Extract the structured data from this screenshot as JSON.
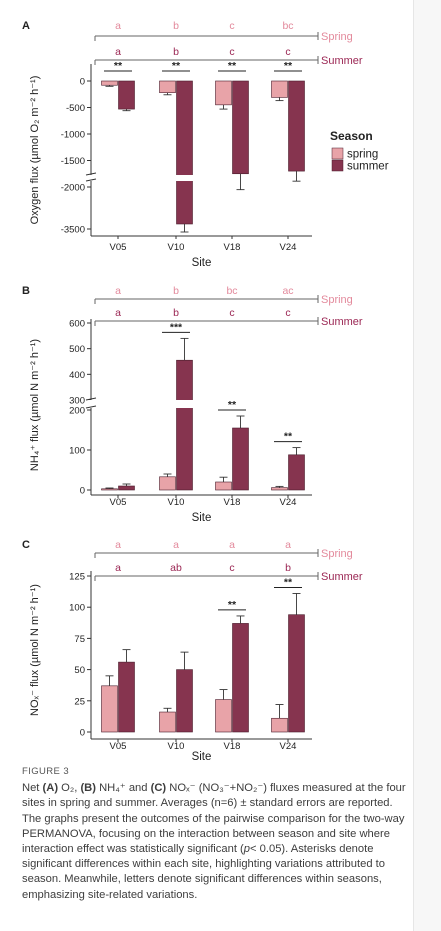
{
  "chart_data": [
    {
      "type": "bar",
      "panel_label": "A",
      "xlabel": "Site",
      "ylabel": "Oxygen flux (µmol O₂ m⁻² h⁻¹)",
      "y_axis_break": [
        -2500,
        -3200
      ],
      "ylim": [
        -3600,
        100
      ],
      "yticks": [
        0,
        -500,
        -1000,
        -1500,
        -2000,
        -3500
      ],
      "categories": [
        "V05",
        "V10",
        "V18",
        "V24"
      ],
      "series": [
        {
          "name": "spring",
          "values": [
            -80,
            -220,
            -450,
            -310
          ],
          "errors": [
            20,
            40,
            80,
            60
          ]
        },
        {
          "name": "summer",
          "values": [
            -530,
            -3400,
            -1750,
            -1700
          ],
          "errors": [
            30,
            160,
            300,
            190
          ]
        }
      ],
      "significance": [
        "**",
        "**",
        "**",
        "**"
      ],
      "spring_letters": [
        "a",
        "b",
        "c",
        "bc"
      ],
      "summer_letters": [
        "a",
        "b",
        "c",
        "c"
      ],
      "legend": {
        "title": "Season",
        "entries": [
          "spring",
          "summer"
        ],
        "position": "right"
      }
    },
    {
      "type": "bar",
      "panel_label": "B",
      "xlabel": "Site",
      "ylabel": "NH₄⁺ flux (µmol N m⁻² h⁻¹)",
      "y_axis_break": [
        220,
        320
      ],
      "ylim": [
        0,
        610
      ],
      "yticks": [
        0,
        100,
        200,
        300,
        400,
        500,
        600
      ],
      "categories": [
        "V05",
        "V10",
        "V18",
        "V24"
      ],
      "series": [
        {
          "name": "spring",
          "values": [
            3,
            33,
            20,
            6
          ],
          "errors": [
            2,
            7,
            12,
            3
          ]
        },
        {
          "name": "summer",
          "values": [
            10,
            455,
            155,
            88
          ],
          "errors": [
            5,
            85,
            30,
            18
          ]
        }
      ],
      "significance": [
        "",
        "***",
        "**",
        "**"
      ],
      "spring_letters": [
        "a",
        "b",
        "bc",
        "ac"
      ],
      "summer_letters": [
        "a",
        "b",
        "c",
        "c"
      ]
    },
    {
      "type": "bar",
      "panel_label": "C",
      "xlabel": "Site",
      "ylabel": "NOₓ⁻ flux (µmol N m⁻² h⁻¹)",
      "ylim": [
        0,
        125
      ],
      "yticks": [
        0,
        25,
        50,
        75,
        100,
        125
      ],
      "categories": [
        "V05",
        "V10",
        "V18",
        "V24"
      ],
      "series": [
        {
          "name": "spring",
          "values": [
            37,
            16,
            26,
            11
          ],
          "errors": [
            8,
            3,
            8,
            11
          ]
        },
        {
          "name": "summer",
          "values": [
            56,
            50,
            87,
            94
          ],
          "errors": [
            10,
            14,
            6,
            17
          ]
        }
      ],
      "significance": [
        "",
        "",
        "**",
        "**"
      ],
      "spring_letters": [
        "a",
        "a",
        "a",
        "a"
      ],
      "summer_letters": [
        "a",
        "ab",
        "c",
        "b"
      ]
    }
  ],
  "season_labels": {
    "spring": "Spring",
    "summer": "Summer"
  },
  "colors": {
    "spring": "#e8a3a8",
    "summer": "#86344f",
    "spring_text": "#e38a9c",
    "summer_text": "#9b2754",
    "axis": "#333333"
  },
  "caption": {
    "label": "FIGURE 3",
    "t1": "Net ",
    "a": "(A)",
    "t2": " O₂, ",
    "b": "(B)",
    "t3": " NH₄⁺ and ",
    "c": "(C)",
    "t4": " NOₓ⁻ (NO₃⁻+NO₂⁻) fluxes measured at the four sites in spring and summer. Averages (n=6) ± standard errors are reported. The graphs present the outcomes of the pairwise comparison for the two-way PERMANOVA, focusing on the interaction between season and site where interaction effect was statistically significant (",
    "p": "p",
    "t5": "< 0.05). Asterisks denote significant differences within each site, highlighting variations attributed to season. Meanwhile, letters denote significant differences within seasons, emphasizing site-related variations."
  }
}
